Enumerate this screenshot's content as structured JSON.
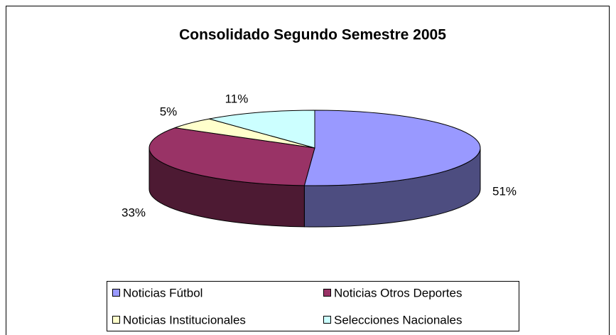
{
  "chart_data": {
    "type": "pie",
    "title": "Consolidado Segundo Semestre 2005",
    "categories": [
      "Noticias Fútbol",
      "Noticias Otros Deportes",
      "Noticias Institucionales",
      "Selecciones Nacionales"
    ],
    "values": [
      51,
      33,
      5,
      11
    ],
    "value_labels": [
      "51%",
      "33%",
      "5%",
      "11%"
    ],
    "colors": [
      "#9999ff",
      "#993366",
      "#ffffcc",
      "#ccffff"
    ]
  }
}
